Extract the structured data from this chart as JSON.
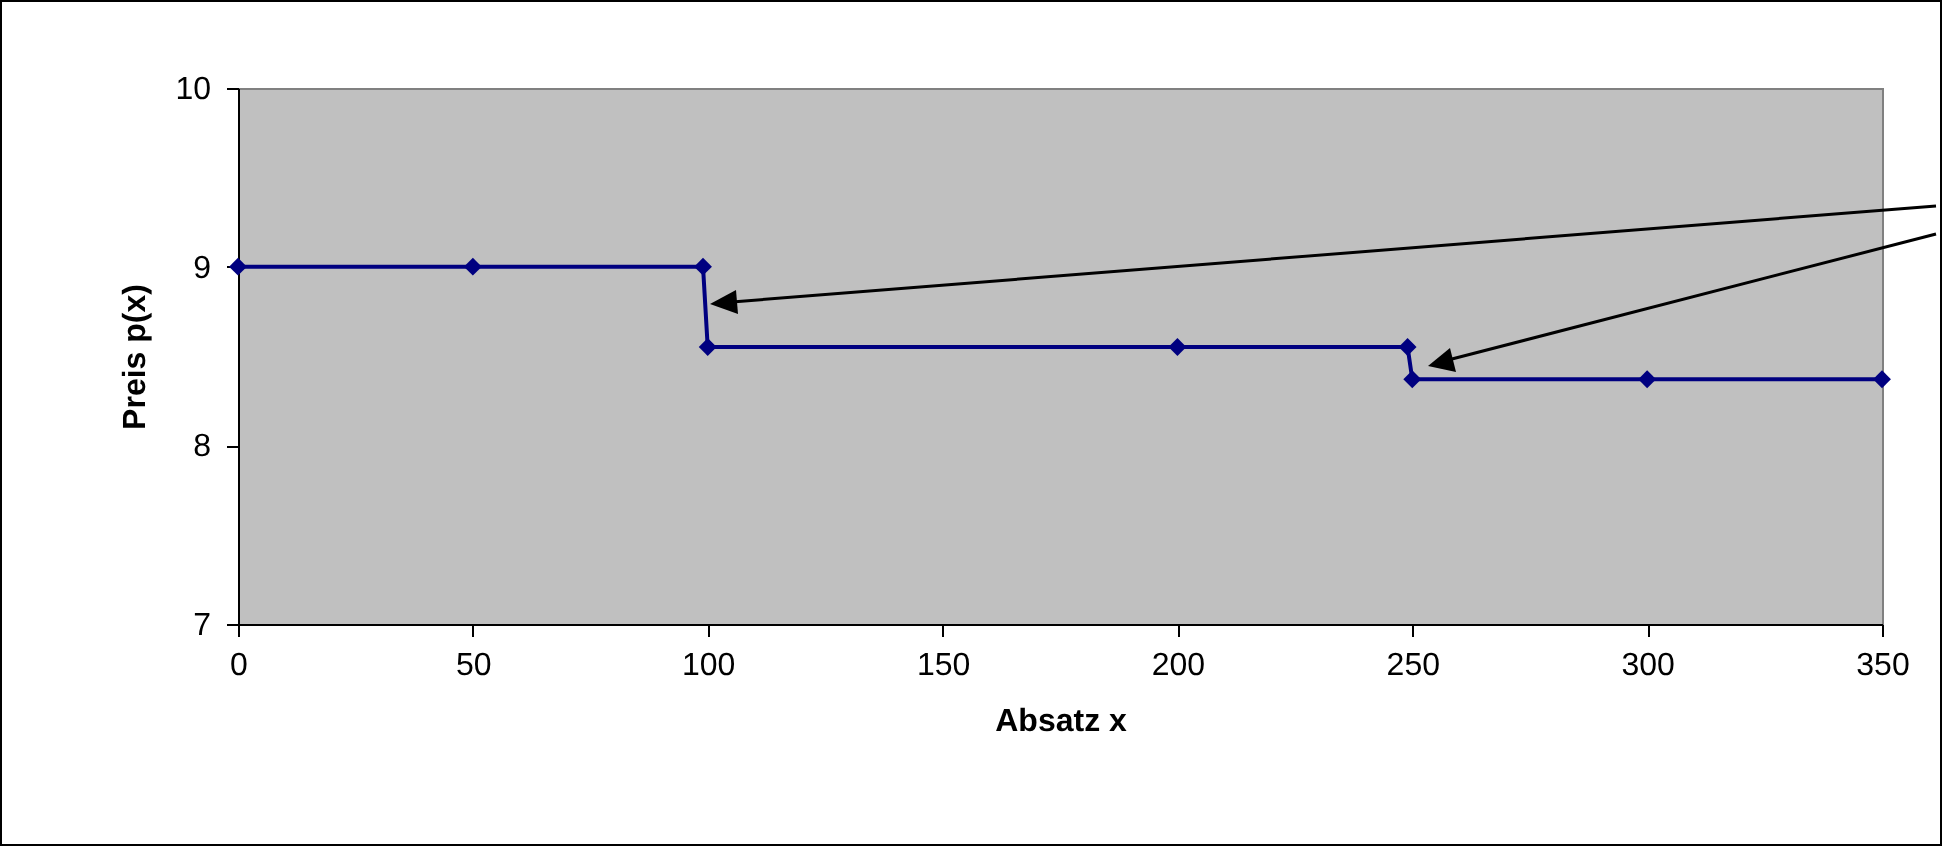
{
  "chart_data": {
    "type": "line",
    "xlabel": "Absatz x",
    "ylabel": "Preis p(x)",
    "x": [
      0,
      50,
      99,
      100,
      200,
      249,
      250,
      300,
      350
    ],
    "series": [
      {
        "color": "#000080",
        "values": [
          9,
          9,
          9,
          8.55,
          8.55,
          8.55,
          8.37,
          8.37,
          8.37
        ]
      }
    ],
    "xlim": [
      0,
      350
    ],
    "xticks": [
      0,
      50,
      100,
      150,
      200,
      250,
      300,
      350
    ],
    "ylim": [
      7,
      10
    ],
    "yticks": [
      7,
      8,
      9,
      10
    ],
    "grid": false,
    "legend": false,
    "marker": "diamond",
    "line_style": "solid"
  }
}
